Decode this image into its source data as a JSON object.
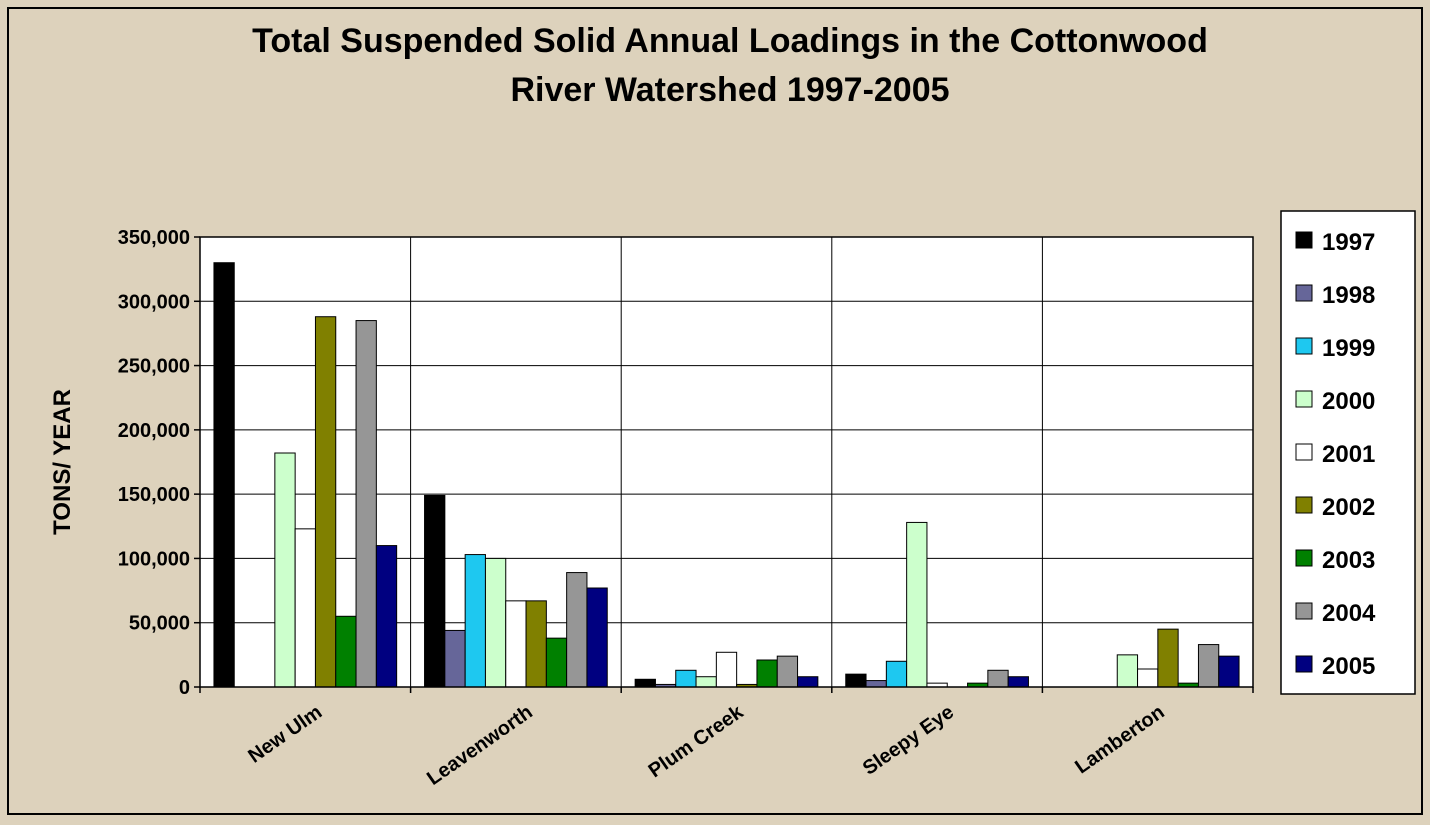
{
  "chart_data": {
    "type": "bar",
    "title_lines": [
      "Total Suspended Solid Annual Loadings in the Cottonwood",
      "River Watershed 1997-2005"
    ],
    "xlabel": "",
    "ylabel": "TONS/ YEAR",
    "ylim": [
      0,
      350000
    ],
    "yticks": [
      0,
      50000,
      100000,
      150000,
      200000,
      250000,
      300000,
      350000
    ],
    "ytick_labels": [
      "0",
      "50,000",
      "100,000",
      "150,000",
      "200,000",
      "250,000",
      "300,000",
      "350,000"
    ],
    "grid": true,
    "legend_position": "right",
    "categories": [
      "New Ulm",
      "Leavenworth",
      "Plum Creek",
      "Sleepy Eye",
      "Lamberton"
    ],
    "series": [
      {
        "name": "1997",
        "color": "#000000",
        "values": [
          330000,
          149000,
          6000,
          10000,
          0
        ]
      },
      {
        "name": "1998",
        "color": "#666699",
        "values": [
          0,
          44000,
          2000,
          5000,
          0
        ]
      },
      {
        "name": "1999",
        "color": "#1ec8f0",
        "values": [
          0,
          103000,
          13000,
          20000,
          0
        ]
      },
      {
        "name": "2000",
        "color": "#ccffcc",
        "values": [
          182000,
          100000,
          8000,
          128000,
          25000
        ]
      },
      {
        "name": "2001",
        "color": "#ffffff",
        "values": [
          123000,
          67000,
          27000,
          3000,
          14000
        ]
      },
      {
        "name": "2002",
        "color": "#808000",
        "values": [
          288000,
          67000,
          2000,
          0,
          45000
        ]
      },
      {
        "name": "2003",
        "color": "#008000",
        "values": [
          55000,
          38000,
          21000,
          3000,
          3000
        ]
      },
      {
        "name": "2004",
        "color": "#969696",
        "values": [
          285000,
          89000,
          24000,
          13000,
          33000
        ]
      },
      {
        "name": "2005",
        "color": "#000080",
        "values": [
          110000,
          77000,
          8000,
          8000,
          24000
        ]
      }
    ]
  },
  "colors": {
    "background": "#ddd2bc",
    "plot_area": "#ffffff",
    "frame": "#000000"
  }
}
